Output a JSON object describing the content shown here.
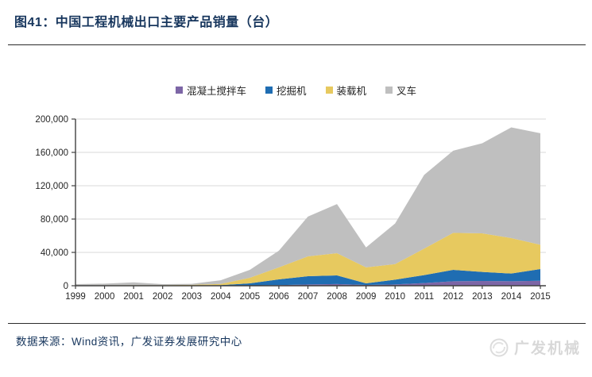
{
  "page": {
    "title": "图41：中国工程机械出口主要产品销量（台）"
  },
  "footer": {
    "source": "数据来源：Wind资讯，广发证券发展研究中心",
    "logo_text": "广发机械"
  },
  "axis": {
    "y_tick_labels": [
      "0",
      "40,000",
      "80,000",
      "120,000",
      "160,000",
      "200,000"
    ]
  },
  "chart_data": {
    "type": "area",
    "stacked": true,
    "title": "中国工程机械出口主要产品销量（台）",
    "xlabel": "",
    "ylabel": "",
    "ylim": [
      0,
      200000
    ],
    "ytick": 40000,
    "grid": "horizontal",
    "legend_position": "top",
    "categories": [
      1999,
      2000,
      2001,
      2002,
      2003,
      2004,
      2005,
      2006,
      2007,
      2008,
      2009,
      2010,
      2011,
      2012,
      2013,
      2014,
      2015
    ],
    "series": [
      {
        "name": "混凝土搅拌车",
        "color": "#7D66A6",
        "values": [
          0,
          0,
          0,
          0,
          100,
          200,
          300,
          700,
          1500,
          2000,
          1000,
          1600,
          3200,
          5400,
          5700,
          5400,
          6000
        ]
      },
      {
        "name": "挖掘机",
        "color": "#1F6DB2",
        "values": [
          100,
          200,
          200,
          200,
          300,
          500,
          2600,
          6900,
          9900,
          10400,
          1900,
          5700,
          9500,
          13600,
          10800,
          9200,
          14000
        ]
      },
      {
        "name": "装载机",
        "color": "#E7C95F",
        "values": [
          300,
          400,
          500,
          500,
          700,
          1500,
          6600,
          14400,
          23800,
          26600,
          19100,
          18700,
          31800,
          44500,
          46400,
          42600,
          29200
        ]
      },
      {
        "name": "叉车",
        "color": "#BFBFBF",
        "values": [
          1500,
          1900,
          3300,
          1200,
          1200,
          4300,
          9500,
          20000,
          47800,
          59000,
          24000,
          48600,
          88500,
          98500,
          108100,
          132800,
          133800
        ]
      }
    ],
    "totals": [
      1900,
      2500,
      4000,
      1900,
      2300,
      6500,
      19000,
      42000,
      83000,
      98000,
      46000,
      74600,
      133000,
      162000,
      171000,
      190000,
      183000
    ]
  },
  "colors": {
    "title_text": "#17365D",
    "axis_line": "#404040",
    "gridline": "#D9D9D9",
    "tick_label": "#262626",
    "logo_gray": "#D8D8D8"
  }
}
